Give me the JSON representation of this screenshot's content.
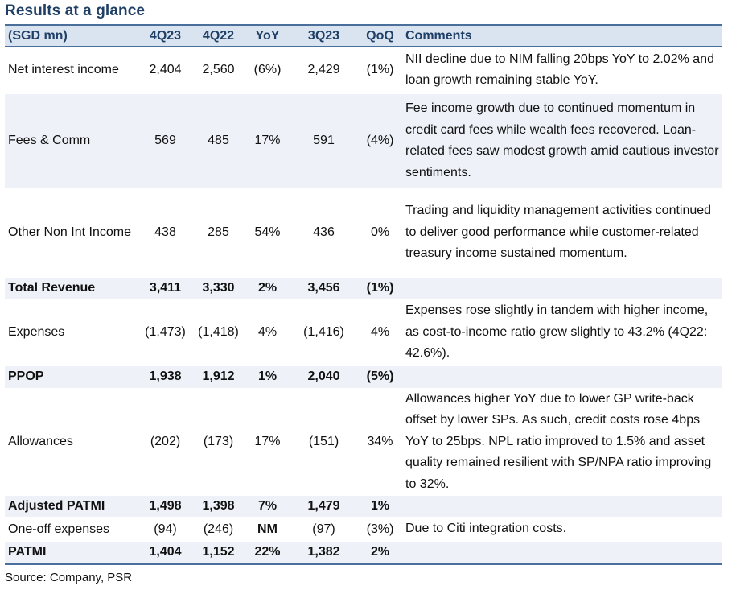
{
  "title": "Results at a glance",
  "header": {
    "label": "(SGD mn)",
    "c1": "4Q23",
    "c2": "4Q22",
    "c3": "YoY",
    "c4": "3Q23",
    "c5": "QoQ",
    "comments": "Comments"
  },
  "rows": [
    {
      "label": "Net interest income",
      "c1": "2,404",
      "c2": "2,560",
      "c3": "(6%)",
      "c4": "2,429",
      "c5": "(1%)",
      "comment": "NII decline due to NIM falling 20bps YoY to 2.02% and loan growth remaining stable YoY."
    },
    {
      "label": "Fees & Comm",
      "c1": "569",
      "c2": "485",
      "c3": "17%",
      "c4": "591",
      "c5": "(4%)",
      "comment": "Fee income growth due to continued momentum in credit card fees while wealth fees recovered. Loan-related fees saw modest growth amid cautious investor sentiments."
    },
    {
      "label": "Other Non Int Income",
      "c1": "438",
      "c2": "285",
      "c3": "54%",
      "c4": "436",
      "c5": "0%",
      "comment": "Trading and liquidity management activities continued to deliver good performance while customer-related treasury income sustained momentum."
    },
    {
      "label": "Total Revenue",
      "c1": "3,411",
      "c2": "3,330",
      "c3": "2%",
      "c4": "3,456",
      "c5": "(1%)",
      "comment": ""
    },
    {
      "label": "Expenses",
      "c1": "(1,473)",
      "c2": "(1,418)",
      "c3": "4%",
      "c4": "(1,416)",
      "c5": "4%",
      "comment": "Expenses rose slightly in tandem with higher income, as cost-to-income ratio grew slightly to 43.2% (4Q22: 42.6%)."
    },
    {
      "label": "PPOP",
      "c1": "1,938",
      "c2": "1,912",
      "c3": "1%",
      "c4": "2,040",
      "c5": "(5%)",
      "comment": ""
    },
    {
      "label": "Allowances",
      "c1": "(202)",
      "c2": "(173)",
      "c3": "17%",
      "c4": "(151)",
      "c5": "34%",
      "comment": "Allowances higher YoY due to lower GP write-back offset by lower SPs. As such, credit costs rose 4bps YoY to 25bps. NPL ratio improved to 1.5% and asset quality remained resilient with SP/NPA ratio improving to 32%."
    },
    {
      "label": "Adjusted PATMI",
      "c1": "1,498",
      "c2": "1,398",
      "c3": "7%",
      "c4": "1,479",
      "c5": "1%",
      "comment": ""
    },
    {
      "label": "One-off expenses",
      "c1": "(94)",
      "c2": "(246)",
      "c3": "NM",
      "c4": "(97)",
      "c5": "(3%)",
      "comment": "Due to Citi integration costs."
    },
    {
      "label": "PATMI",
      "c1": "1,404",
      "c2": "1,152",
      "c3": "22%",
      "c4": "1,382",
      "c5": "2%",
      "comment": ""
    }
  ],
  "source": "Source: Company, PSR"
}
